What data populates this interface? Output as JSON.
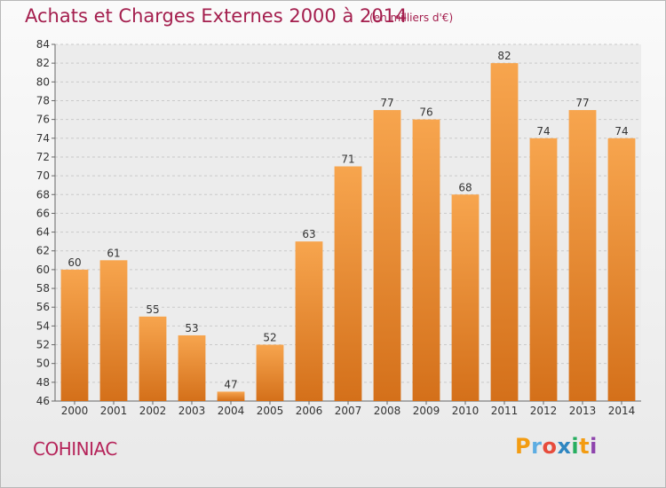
{
  "header": {
    "title": "Achats et Charges Externes 2000 à 2014",
    "unit": "(en milliers d'€)"
  },
  "footer": {
    "commune": "COHINIAC",
    "logo_text": "Proxiti"
  },
  "colors": {
    "bar_top": "#f7a54e",
    "bar_bottom": "#d4701a",
    "title": "#a41f4e",
    "logo": [
      "#f39c12",
      "#5dade2",
      "#e74c3c",
      "#2e86c1",
      "#27ae60",
      "#f39c12",
      "#8e44ad"
    ]
  },
  "chart_data": {
    "type": "bar",
    "title": "Achats et Charges Externes 2000 à 2014",
    "xlabel": "",
    "ylabel": "",
    "categories": [
      "2000",
      "2001",
      "2002",
      "2003",
      "2004",
      "2005",
      "2006",
      "2007",
      "2008",
      "2009",
      "2010",
      "2011",
      "2012",
      "2013",
      "2014"
    ],
    "values": [
      60,
      61,
      55,
      53,
      47,
      52,
      63,
      71,
      77,
      76,
      68,
      82,
      74,
      77,
      74
    ],
    "ylim": [
      46,
      84
    ],
    "yticks": [
      46,
      48,
      50,
      52,
      54,
      56,
      58,
      60,
      62,
      64,
      66,
      68,
      70,
      72,
      74,
      76,
      78,
      80,
      82,
      84
    ],
    "grid": true,
    "data_labels": true
  }
}
